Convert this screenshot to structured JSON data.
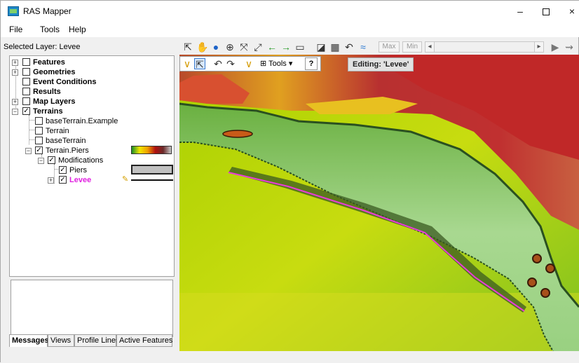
{
  "window": {
    "title": "RAS Mapper",
    "minimize": "–",
    "maximize": "",
    "close": "×"
  },
  "menu": {
    "file": "File",
    "tools": "Tools",
    "help": "Help"
  },
  "selected_layer": "Selected Layer: Levee",
  "tree": {
    "features": "Features",
    "geometries": "Geometries",
    "event_conditions": "Event Conditions",
    "results": "Results",
    "map_layers": "Map Layers",
    "terrains": "Terrains",
    "base_terrain_example": "baseTerrain.Example",
    "terrain": "Terrain",
    "base_terrain": "baseTerrain",
    "terrain_piers": "Terrain.Piers",
    "modifications": "Modifications",
    "piers": "Piers",
    "levee": "Levee",
    "levee_color": "#e020e0"
  },
  "tabs": {
    "messages": "Messages",
    "views": "Views",
    "profile_lines": "Profile Lines",
    "active_features": "Active Features"
  },
  "toolbar": {
    "max": "Max",
    "min": "Min"
  },
  "edit_toolbar": {
    "tools": "Tools",
    "help": "?"
  },
  "editing_label": "Editing: 'Levee'",
  "colors": {
    "levee_line": "#e83cd8",
    "pier": "#8b4513"
  }
}
